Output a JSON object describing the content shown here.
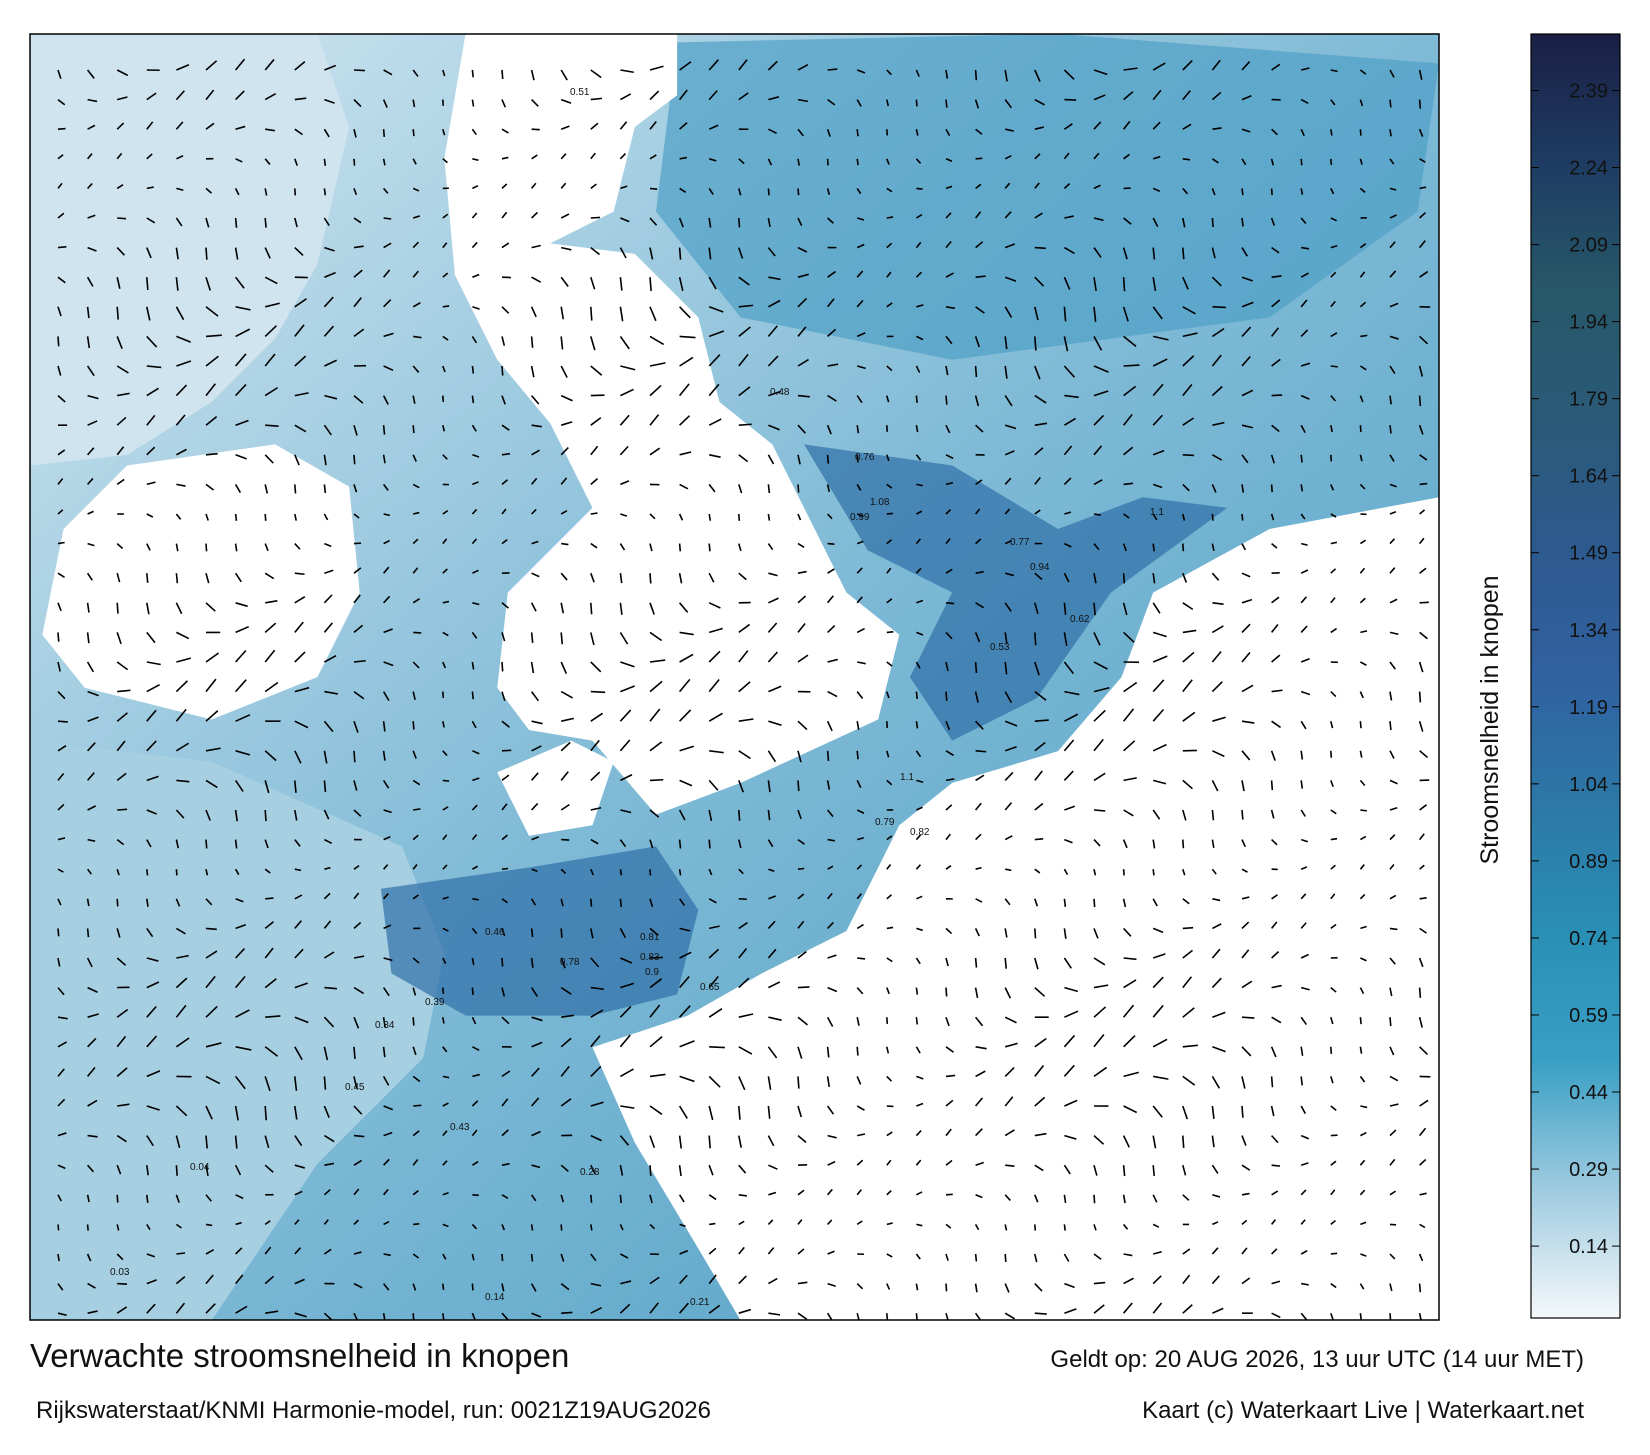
{
  "map": {
    "title": "Verwachte stroomsnelheid in knopen",
    "subtitle": "Rijkswaterstaat/KNMI Harmonie-model, run: 0021Z19AUG2026",
    "valid_time": "Geldt op: 20 AUG 2026, 13 uur UTC (14 uur MET)",
    "credit": "Kaart (c) Waterkaart Live | Waterkaart.net",
    "current_labels": [
      "0.51",
      "0.48",
      "0.76",
      "0.99",
      "1.08",
      "0.77",
      "0.94",
      "1.1",
      "0.62",
      "0.53",
      "1.1",
      "0.79",
      "0.82",
      "0.83",
      "0.9",
      "0.78",
      "0.81",
      "0.65",
      "0.46",
      "0.39",
      "0.34",
      "0.45",
      "0.43",
      "0.28",
      "0.14",
      "0.21",
      "0.04",
      "0.03"
    ]
  },
  "colorbar": {
    "label": "Stroomsnelheid in knopen",
    "lim": [
      0,
      2.5
    ],
    "ticks": [
      0.14,
      0.29,
      0.44,
      0.59,
      0.74,
      0.89,
      1.04,
      1.19,
      1.34,
      1.49,
      1.64,
      1.79,
      1.94,
      2.09,
      2.24,
      2.39
    ],
    "colors": [
      "#f4f8fa",
      "#9fcbe0",
      "#3a9fc4",
      "#2a8fb5",
      "#2c78a6",
      "#3061a0",
      "#2d5a8e",
      "#2a5a78",
      "#275868",
      "#1e3c63",
      "#1a1f44"
    ]
  }
}
